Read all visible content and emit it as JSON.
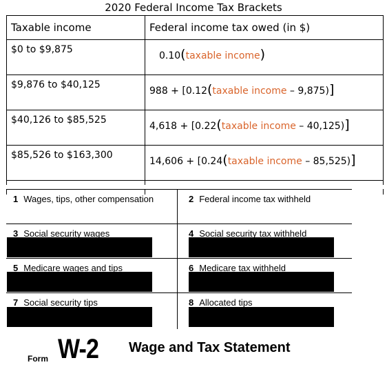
{
  "title": "2020 Federal Income Tax Brackets",
  "table": {
    "headers": [
      "Taxable income",
      "Federal income tax owed (in $)"
    ],
    "rows": [
      {
        "range": "$0 to $9,875",
        "prefix": "0.10",
        "open": "(",
        "ti": "taxable income",
        "minus": "",
        "close": ")"
      },
      {
        "range": "$9,876 to $40,125",
        "prefix": "988 + [0.12",
        "open": "(",
        "ti": "taxable income",
        "minus": " – 9,875)",
        "close": "]"
      },
      {
        "range": "$40,126 to $85,525",
        "prefix": "4,618 + [0.22",
        "open": "(",
        "ti": "taxable income",
        "minus": " – 40,125)",
        "close": "]"
      },
      {
        "range": "$85,526 to $163,300",
        "prefix": "14,606 + [0.24",
        "open": "(",
        "ti": "taxable income",
        "minus": " – 85,525)",
        "close": "]"
      }
    ]
  },
  "w2": {
    "boxes": [
      {
        "num": "1",
        "label": "Wages, tips, other compensation",
        "redacted": false
      },
      {
        "num": "2",
        "label": "Federal income tax withheld",
        "redacted": false
      },
      {
        "num": "3",
        "label": "Social security wages",
        "redacted": true
      },
      {
        "num": "4",
        "label": "Social security tax withheld",
        "redacted": true
      },
      {
        "num": "5",
        "label": "Medicare wages and tips",
        "redacted": true
      },
      {
        "num": "6",
        "label": "Medicare tax withheld",
        "redacted": true
      },
      {
        "num": "7",
        "label": "Social security tips",
        "redacted": true
      },
      {
        "num": "8",
        "label": "Allocated tips",
        "redacted": true
      }
    ],
    "form_word": "Form",
    "form_id": "W-2",
    "form_title": "Wage and Tax Statement"
  },
  "colors": {
    "accent": "#d9642b"
  }
}
